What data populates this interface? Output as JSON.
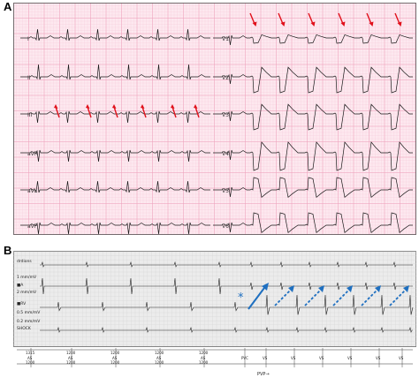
{
  "panels": [
    {
      "label": "A"
    },
    {
      "label": "B"
    }
  ],
  "ecg": {
    "leads_left": [
      "I",
      "II",
      "III",
      "aVR",
      "aVL",
      "aVF"
    ],
    "leads_right": [
      "V1",
      "V2",
      "V3",
      "V4",
      "V5",
      "V6"
    ],
    "grid_color": "#f6c4d4",
    "grid_bg": "#fde8ef",
    "trace_color": "#1a1a1a",
    "arrow_color": "#e0101a"
  },
  "egm": {
    "channels": [
      {
        "name": "drdions",
        "gain": "1 mm/mV"
      },
      {
        "name": "■A",
        "gain": "2 mm/mV"
      },
      {
        "name": "■RV",
        "gain": "0.5 mm/mV"
      },
      {
        "name": "SHOCK",
        "gain": "0.2 mm/mV"
      }
    ],
    "star": "*",
    "arrow_color": "#1e6fc0",
    "marker_row1": [
      "1315",
      "1200",
      "1200",
      "1200",
      "1200",
      "",
      "",
      "",
      "",
      "",
      "",
      ""
    ],
    "marker_row2": [
      "AS",
      "AS",
      "AS",
      "AS",
      "AS",
      "PVC",
      "VS",
      "VS",
      "VS",
      "VS",
      "VS",
      "VS"
    ],
    "marker_row3": [
      "1200",
      "1200",
      "1200",
      "1200",
      "1200",
      "",
      "",
      "",
      "",
      "",
      "",
      ""
    ],
    "footer_label": "PVP→"
  }
}
